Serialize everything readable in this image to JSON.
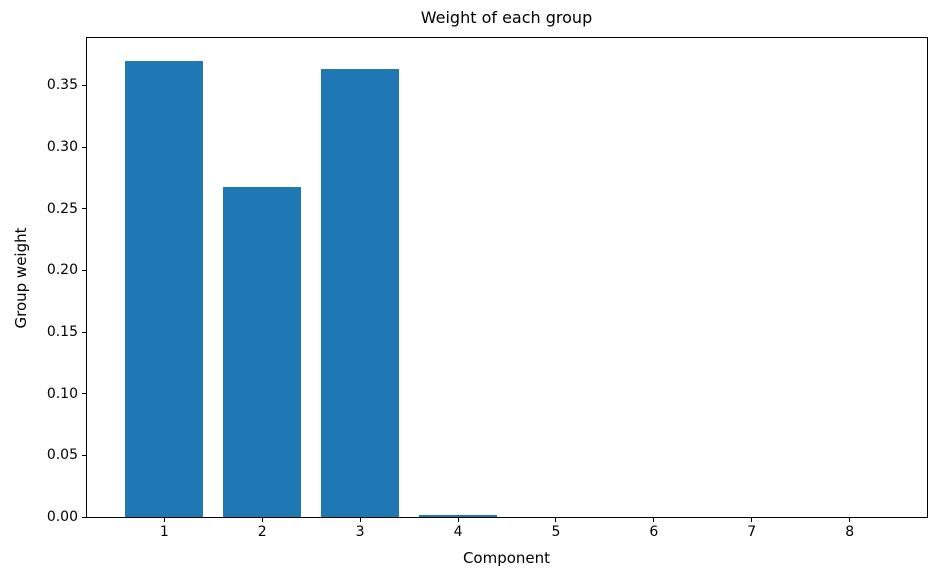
{
  "chart_data": {
    "type": "bar",
    "title": "Weight of each group",
    "xlabel": "Component",
    "ylabel": "Group weight",
    "categories": [
      1,
      2,
      3,
      4,
      5,
      6,
      7,
      8
    ],
    "values": [
      0.37,
      0.268,
      0.363,
      0.002,
      0.0,
      0.0,
      0.0,
      0.0
    ],
    "series_name": "Group weight",
    "bar_color": "#1f77b4",
    "bar_width": 0.8,
    "xlim": [
      0.21,
      8.79
    ],
    "ylim": [
      0,
      0.3885
    ],
    "yticks": [
      0.0,
      0.05,
      0.1,
      0.15,
      0.2,
      0.25,
      0.3,
      0.35
    ],
    "ytick_format_decimals": 2,
    "grid": false,
    "legend_position": "none",
    "background_color": "#ffffff",
    "spine_color": "#000000",
    "text_color": "#000000"
  }
}
